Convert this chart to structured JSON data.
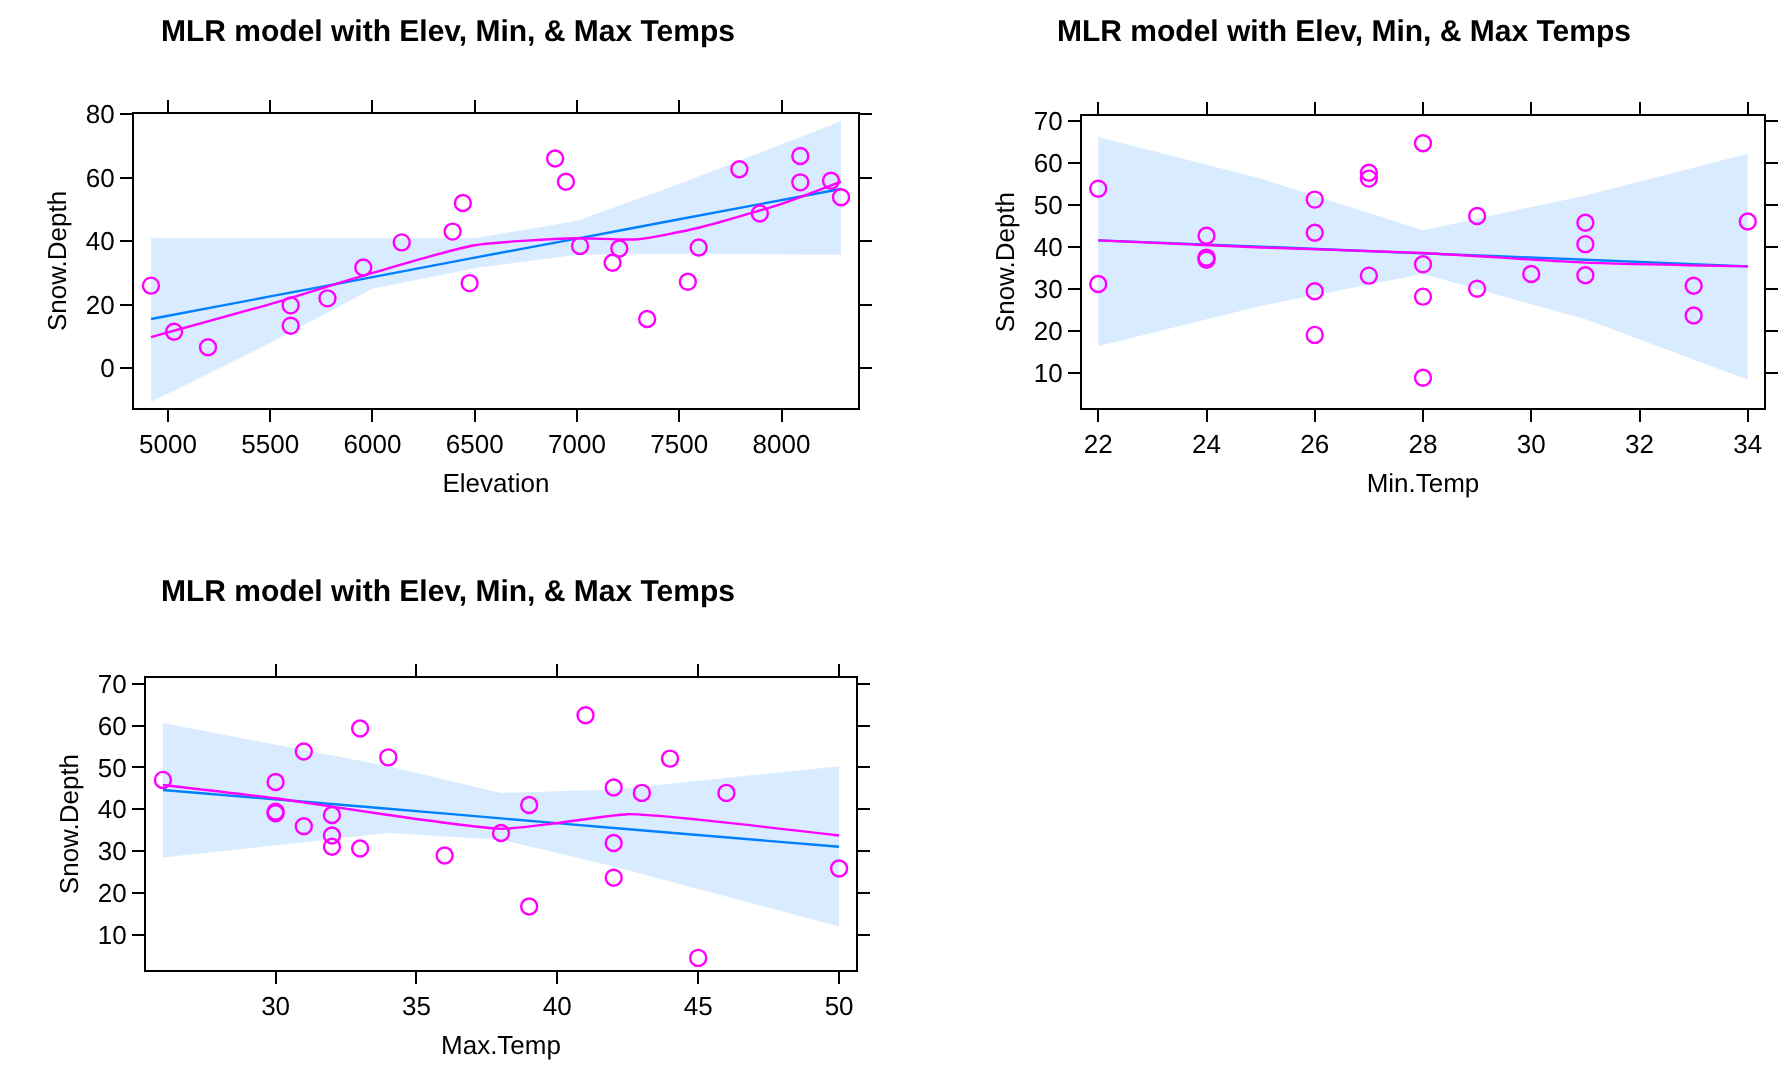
{
  "chart_data": [
    {
      "type": "scatter",
      "title": "MLR model with Elev, Min, & Max Temps",
      "xlabel": "Elevation",
      "ylabel": "Snow.Depth",
      "xlim": [
        4834,
        8374
      ],
      "ylim": [
        -12.5,
        80
      ],
      "xticks": [
        5000,
        5500,
        6000,
        6500,
        7000,
        7500,
        8000
      ],
      "yticks": [
        0,
        20,
        40,
        60,
        80
      ],
      "series": [
        {
          "type": "line",
          "marker": "none",
          "color": "#0080ff",
          "x": [
            4917,
            5500,
            6000,
            6500,
            7000,
            7500,
            8291
          ],
          "values": [
            15.5,
            22.6,
            28.7,
            34.8,
            40.8,
            46.9,
            56.4
          ],
          "lower": [
            -10.6,
            8,
            25,
            31.5,
            35.7,
            36,
            35.7
          ],
          "upper": [
            41,
            41,
            41,
            41,
            46.4,
            58,
            77.7
          ]
        },
        {
          "type": "line",
          "marker": "none",
          "color": "#ff00ff",
          "x": [
            4917,
            5500,
            6000,
            6500,
            7000,
            7300,
            7600,
            8000,
            8291
          ],
          "values": [
            9.8,
            20.2,
            30,
            38.7,
            40.9,
            40.6,
            44.3,
            51.7,
            58.7
          ]
        },
        {
          "marker": "circle",
          "color": "#ff00ff",
          "x": [
            4917,
            5030,
            5196,
            5600,
            5600,
            5780,
            5955,
            6143,
            6392,
            6442,
            6475,
            6893,
            6946,
            7015,
            7174,
            7207,
            7343,
            7542,
            7595,
            7794,
            7894,
            8092,
            8092,
            8242,
            8291
          ],
          "values": [
            26,
            11.5,
            6.6,
            19.8,
            13.4,
            22,
            31.7,
            39.6,
            43,
            52,
            26.8,
            66,
            58.7,
            38.5,
            33.2,
            37.7,
            15.5,
            27.2,
            38,
            62.6,
            48.7,
            66.8,
            58.5,
            59,
            53.8
          ]
        }
      ]
    },
    {
      "type": "scatter",
      "title": "MLR model with Elev, Min, & Max Temps",
      "xlabel": "Min.Temp",
      "ylabel": "Snow.Depth",
      "xlim": [
        21.7,
        34.3
      ],
      "ylim": [
        1.7,
        71.2
      ],
      "xticks": [
        22,
        24,
        26,
        28,
        30,
        32,
        34
      ],
      "yticks": [
        10,
        20,
        30,
        40,
        50,
        60,
        70
      ],
      "series": [
        {
          "type": "line",
          "marker": "none",
          "color": "#0080ff",
          "x": [
            22,
            25,
            28,
            31,
            34
          ],
          "values": [
            41.6,
            40.1,
            38.5,
            37,
            35.4
          ],
          "lower": [
            16.4,
            26,
            33.6,
            22.8,
            8.4
          ],
          "upper": [
            66.2,
            56.3,
            44,
            52.3,
            62.2
          ]
        },
        {
          "type": "line",
          "marker": "none",
          "color": "#ff00ff",
          "x": [
            22,
            25,
            28,
            31,
            34
          ],
          "values": [
            41.6,
            39.9,
            38.6,
            36.3,
            35.4
          ]
        },
        {
          "marker": "circle",
          "color": "#ff00ff",
          "x": [
            22,
            22,
            24,
            24,
            24,
            26,
            26,
            26,
            26,
            27,
            27,
            27,
            28,
            28,
            28,
            28,
            29,
            29,
            30,
            31,
            31,
            31,
            33,
            33,
            34
          ],
          "values": [
            53.9,
            31.2,
            42.7,
            37.5,
            37,
            51.3,
            43.4,
            29.5,
            19.1,
            57.7,
            56.3,
            33.2,
            64.7,
            35.9,
            28.2,
            8.9,
            47.4,
            30.1,
            33.6,
            45.8,
            40.7,
            33.3,
            30.8,
            23.7,
            46.1
          ]
        }
      ]
    },
    {
      "type": "scatter",
      "title": "MLR model with Elev, Min, & Max Temps",
      "xlabel": "Max.Temp",
      "ylabel": "Snow.Depth",
      "xlim": [
        25.4,
        50.6
      ],
      "ylim": [
        1.5,
        71.4
      ],
      "xticks": [
        30,
        35,
        40,
        45,
        50
      ],
      "yticks": [
        10,
        20,
        30,
        40,
        50,
        60,
        70
      ],
      "series": [
        {
          "type": "line",
          "marker": "none",
          "color": "#0080ff",
          "x": [
            26,
            34,
            38,
            42,
            50
          ],
          "values": [
            44.6,
            40.1,
            37.8,
            35.5,
            31
          ],
          "lower": [
            28.4,
            34.3,
            32.7,
            26.3,
            11.9
          ],
          "upper": [
            60.6,
            50.3,
            43.9,
            44.7,
            50.3
          ]
        },
        {
          "type": "line",
          "marker": "none",
          "color": "#ff00ff",
          "x": [
            26,
            30,
            34,
            38,
            40,
            42.5,
            45,
            50
          ],
          "values": [
            45.8,
            42.6,
            38.6,
            35.3,
            36.7,
            38.8,
            37.5,
            33.7
          ]
        },
        {
          "marker": "circle",
          "color": "#ff00ff",
          "x": [
            26,
            30,
            30,
            30,
            31,
            31,
            32,
            32,
            32,
            33,
            33,
            34,
            36,
            38,
            39,
            39,
            41,
            42,
            42,
            42,
            43,
            44,
            45,
            46,
            50
          ],
          "values": [
            47,
            46.5,
            39.4,
            39,
            53.8,
            35.9,
            38.6,
            33.7,
            31,
            59.3,
            30.6,
            52.4,
            28.9,
            34.3,
            41,
            16.7,
            62.5,
            45.2,
            31.9,
            23.6,
            43.9,
            52.1,
            4.4,
            43.9,
            25.8
          ]
        }
      ]
    }
  ]
}
